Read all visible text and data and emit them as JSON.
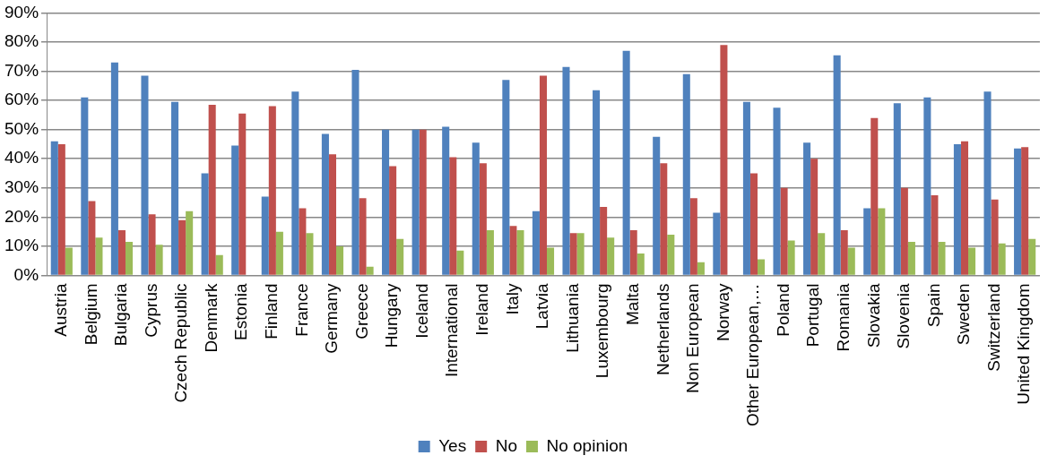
{
  "chart_data": {
    "type": "bar",
    "categories": [
      "Austria",
      "Belgium",
      "Bulgaria",
      "Cyprus",
      "Czech Republic",
      "Denmark",
      "Estonia",
      "Finland",
      "France",
      "Germany",
      "Greece",
      "Hungary",
      "Iceland",
      "International",
      "Ireland",
      "Italy",
      "Latvia",
      "Lithuania",
      "Luxembourg",
      "Malta",
      "Netherlands",
      "Non European",
      "Norway",
      "Other European,…",
      "Poland",
      "Portugal",
      "Romania",
      "Slovakia",
      "Slovenia",
      "Spain",
      "Sweden",
      "Switzerland",
      "United Kingdom"
    ],
    "series": [
      {
        "name": "Yes",
        "color": "#4f81bd",
        "values": [
          46,
          61,
          73,
          68.5,
          59.5,
          35,
          44.5,
          27,
          63,
          48.5,
          70.5,
          50,
          50,
          51,
          45.5,
          67,
          22,
          71.5,
          63.5,
          77,
          47.5,
          69,
          21.5,
          59.5,
          57.5,
          45.5,
          75.5,
          23,
          59,
          61,
          45,
          63,
          43.5
        ]
      },
      {
        "name": "No",
        "color": "#c0504d",
        "values": [
          45,
          25.5,
          15.5,
          21,
          19,
          58.5,
          55.5,
          58,
          23,
          41.5,
          26.5,
          37.5,
          50,
          40.5,
          38.5,
          17,
          68.5,
          14.5,
          23.5,
          15.5,
          38.5,
          26.5,
          79,
          35,
          30,
          40,
          15.5,
          54,
          30,
          27.5,
          46,
          26,
          44
        ]
      },
      {
        "name": "No opinion",
        "color": "#9bbb59",
        "values": [
          9.5,
          13,
          11.5,
          10.5,
          22,
          7,
          0,
          15,
          14.5,
          10,
          3,
          12.5,
          0,
          8.5,
          15.5,
          15.5,
          9.5,
          14.5,
          13,
          7.5,
          14,
          4.5,
          0,
          5.5,
          12,
          14.5,
          9.5,
          23,
          11.5,
          11.5,
          9.5,
          11,
          12.5
        ]
      }
    ],
    "ylim": [
      0,
      90
    ],
    "yticks": [
      {
        "value": 0,
        "label": "0%"
      },
      {
        "value": 10,
        "label": "10%"
      },
      {
        "value": 20,
        "label": "20%"
      },
      {
        "value": 30,
        "label": "30%"
      },
      {
        "value": 40,
        "label": "40%"
      },
      {
        "value": 50,
        "label": "50%"
      },
      {
        "value": 60,
        "label": "60%"
      },
      {
        "value": 70,
        "label": "70%"
      },
      {
        "value": 80,
        "label": "80%"
      },
      {
        "value": 90,
        "label": "90%"
      }
    ],
    "grid": "y",
    "legend": "bottom"
  }
}
